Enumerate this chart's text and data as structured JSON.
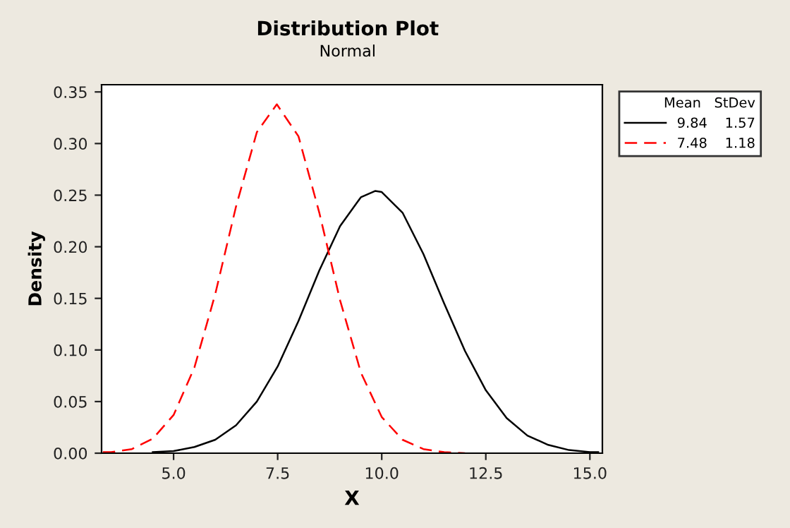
{
  "chart_data": {
    "type": "line",
    "title": "Distribution Plot",
    "subtitle": "Normal",
    "xlabel": "X",
    "ylabel": "Density",
    "legend_title": "Mean   StDev",
    "legend": "top right",
    "grid": false,
    "marker": "none",
    "xlim": [
      3.27,
      15.3
    ],
    "ylim": [
      0,
      0.357
    ],
    "xticks": [
      {
        "value": 5,
        "label": "5.0"
      },
      {
        "value": 7.5,
        "label": "7.5"
      },
      {
        "value": 10,
        "label": "10.0"
      },
      {
        "value": 12.5,
        "label": "12.5"
      },
      {
        "value": 15,
        "label": "15.0"
      }
    ],
    "yticks": [
      {
        "value": 0,
        "label": "0.00"
      },
      {
        "value": 0.05,
        "label": "0.05"
      },
      {
        "value": 0.1,
        "label": "0.10"
      },
      {
        "value": 0.15,
        "label": "0.15"
      },
      {
        "value": 0.2,
        "label": "0.20"
      },
      {
        "value": 0.25,
        "label": "0.25"
      },
      {
        "value": 0.3,
        "label": "0.30"
      },
      {
        "value": 0.35,
        "label": "0.35"
      }
    ],
    "series": [
      {
        "name": "9.84    1.57",
        "color": "#000000",
        "line_style": "solid",
        "x": [
          4.5,
          5.0,
          5.5,
          6.0,
          6.5,
          7.0,
          7.5,
          8.0,
          8.5,
          9.0,
          9.5,
          9.84,
          10.0,
          10.5,
          11.0,
          11.5,
          12.0,
          12.5,
          13.0,
          13.5,
          14.0,
          14.5,
          15.0,
          15.2
        ],
        "values": [
          0.001,
          0.002,
          0.006,
          0.013,
          0.027,
          0.05,
          0.084,
          0.128,
          0.177,
          0.22,
          0.248,
          0.254,
          0.253,
          0.233,
          0.193,
          0.145,
          0.099,
          0.061,
          0.034,
          0.017,
          0.008,
          0.003,
          0.001,
          0.001
        ]
      },
      {
        "name": "7.48    1.18",
        "color": "#ff0000",
        "line_style": "dashed",
        "x": [
          3.3,
          3.5,
          4.0,
          4.5,
          5.0,
          5.5,
          6.0,
          6.5,
          7.0,
          7.48,
          8.0,
          8.5,
          9.0,
          9.5,
          10.0,
          10.5,
          11.0,
          11.5,
          12.0
        ],
        "values": [
          0.001,
          0.001,
          0.004,
          0.014,
          0.037,
          0.083,
          0.154,
          0.239,
          0.311,
          0.338,
          0.307,
          0.233,
          0.148,
          0.078,
          0.035,
          0.013,
          0.004,
          0.001,
          0.0
        ]
      }
    ]
  }
}
